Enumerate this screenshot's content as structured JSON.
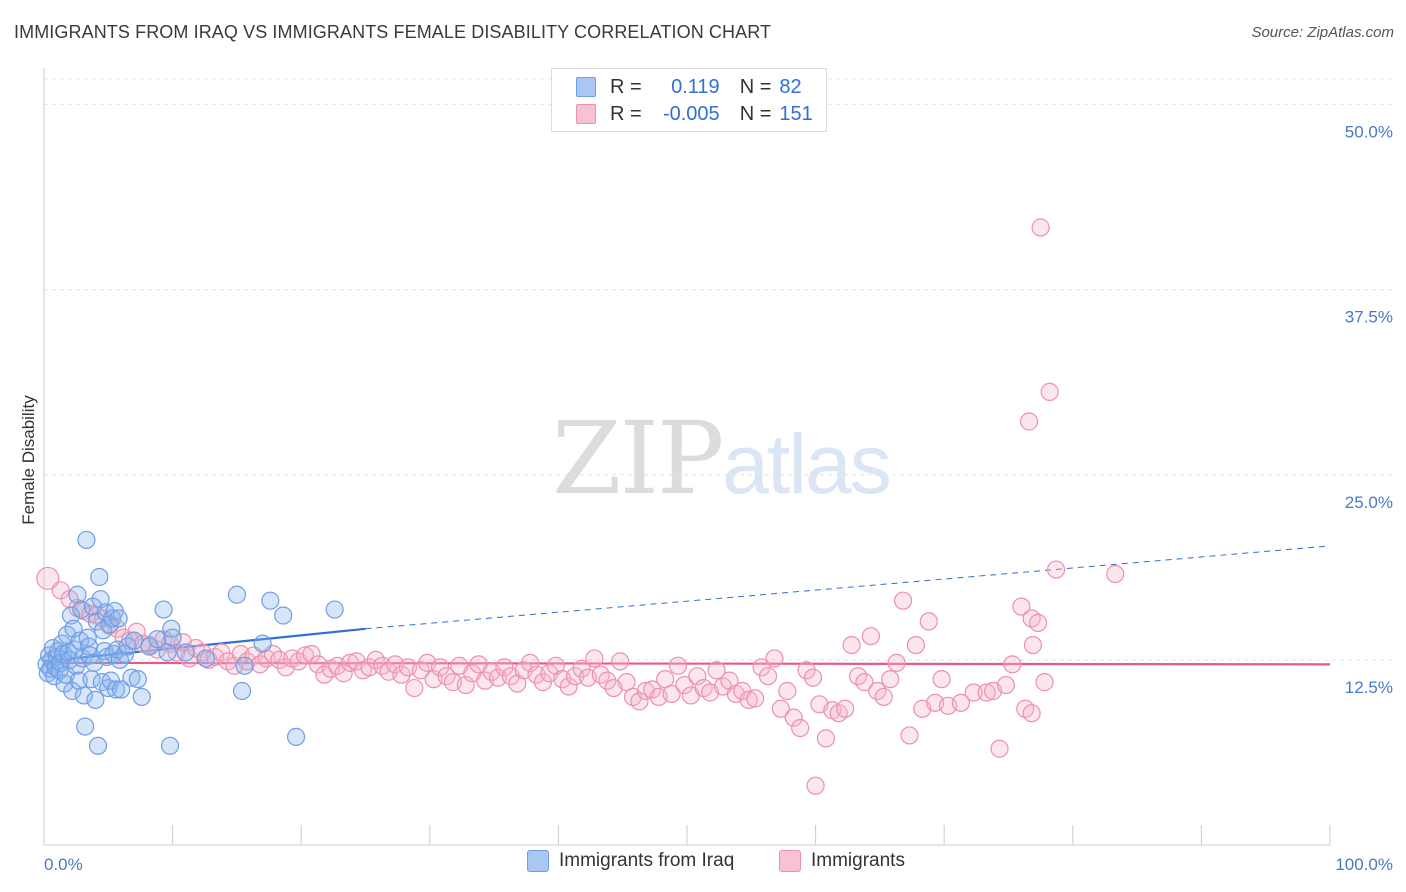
{
  "title": "IMMIGRANTS FROM IRAQ VS IMMIGRANTS FEMALE DISABILITY CORRELATION CHART",
  "source": "Source: ZipAtlas.com",
  "watermark": {
    "part1": "ZIP",
    "part2": "atlas"
  },
  "legend": {
    "rows": [
      {
        "r_label": "R =",
        "r_value": "0.119",
        "n_label": "N =",
        "n_value": "82",
        "color": "#a9c7f0",
        "border": "#6f9ee6"
      },
      {
        "r_label": "R =",
        "r_value": "-0.005",
        "n_label": "N =",
        "n_value": "151",
        "color": "#f7c3d3",
        "border": "#ee8fad"
      }
    ]
  },
  "bottom_legend": [
    {
      "label": "Immigrants from Iraq",
      "color": "#a9c7f0",
      "border": "#6f9ee6"
    },
    {
      "label": "Immigrants",
      "color": "#f7c3d3",
      "border": "#ee8fad"
    }
  ],
  "chart_data": {
    "type": "scatter",
    "ylabel": "Female Disability",
    "xlim": [
      0,
      100
    ],
    "ylim": [
      0,
      52
    ],
    "x_tick_labels": [
      "0.0%",
      "100.0%"
    ],
    "y_ticks": [
      {
        "value": 12.5,
        "label": "12.5%"
      },
      {
        "value": 25.0,
        "label": "25.0%"
      },
      {
        "value": 37.5,
        "label": "37.5%"
      },
      {
        "value": 50.0,
        "label": "50.0%"
      }
    ],
    "grid": "dashed horizontal",
    "series": [
      {
        "name": "Immigrants from Iraq",
        "color": "#6f9ee6",
        "fill": "rgba(140,180,236,0.35)",
        "trend": {
          "x0": 0,
          "y0": 12.4,
          "x1": 25,
          "y1": 14.6,
          "dashed_to_x": 100,
          "dashed_y": 20.2,
          "color": "#2f6fd6"
        },
        "points": [
          [
            0.2,
            12.2
          ],
          [
            0.3,
            11.6
          ],
          [
            0.4,
            12.8
          ],
          [
            0.5,
            11.9
          ],
          [
            0.6,
            12.5
          ],
          [
            0.7,
            13.3
          ],
          [
            0.8,
            11.4
          ],
          [
            0.9,
            12.0
          ],
          [
            1.0,
            12.7
          ],
          [
            1.1,
            13.1
          ],
          [
            1.2,
            11.8
          ],
          [
            1.3,
            12.3
          ],
          [
            1.4,
            13.6
          ],
          [
            1.5,
            12.9
          ],
          [
            1.6,
            10.9
          ],
          [
            1.7,
            11.5
          ],
          [
            1.8,
            14.2
          ],
          [
            1.9,
            13.0
          ],
          [
            2.0,
            12.5
          ],
          [
            2.1,
            15.5
          ],
          [
            2.2,
            10.4
          ],
          [
            2.3,
            14.6
          ],
          [
            2.4,
            13.2
          ],
          [
            2.5,
            12.1
          ],
          [
            2.6,
            16.9
          ],
          [
            2.7,
            11.1
          ],
          [
            2.8,
            13.8
          ],
          [
            2.9,
            15.9
          ],
          [
            3.0,
            12.6
          ],
          [
            3.1,
            10.1
          ],
          [
            3.2,
            8.0
          ],
          [
            3.3,
            20.6
          ],
          [
            3.4,
            14.0
          ],
          [
            3.5,
            13.4
          ],
          [
            3.6,
            12.8
          ],
          [
            3.7,
            11.2
          ],
          [
            3.8,
            16.1
          ],
          [
            3.9,
            12.3
          ],
          [
            4.0,
            9.8
          ],
          [
            4.1,
            15.1
          ],
          [
            4.2,
            6.7
          ],
          [
            4.3,
            18.1
          ],
          [
            4.4,
            16.6
          ],
          [
            4.5,
            11.0
          ],
          [
            4.6,
            14.5
          ],
          [
            4.7,
            13.1
          ],
          [
            4.8,
            15.7
          ],
          [
            4.9,
            12.7
          ],
          [
            5.0,
            10.6
          ],
          [
            5.1,
            14.9
          ],
          [
            5.2,
            11.1
          ],
          [
            5.3,
            15.3
          ],
          [
            5.4,
            12.9
          ],
          [
            5.5,
            15.8
          ],
          [
            5.6,
            10.5
          ],
          [
            5.7,
            13.2
          ],
          [
            5.8,
            15.3
          ],
          [
            5.9,
            12.5
          ],
          [
            6.0,
            10.5
          ],
          [
            6.3,
            12.9
          ],
          [
            6.5,
            13.4
          ],
          [
            6.8,
            11.3
          ],
          [
            7.0,
            13.8
          ],
          [
            7.3,
            11.2
          ],
          [
            7.6,
            10.0
          ],
          [
            8.2,
            13.4
          ],
          [
            8.8,
            13.9
          ],
          [
            9.3,
            15.9
          ],
          [
            9.6,
            13.0
          ],
          [
            9.8,
            6.7
          ],
          [
            9.9,
            14.6
          ],
          [
            10.0,
            14.0
          ],
          [
            11.0,
            13.0
          ],
          [
            12.6,
            12.6
          ],
          [
            15.0,
            16.9
          ],
          [
            15.4,
            10.4
          ],
          [
            15.6,
            12.1
          ],
          [
            17.0,
            13.6
          ],
          [
            17.6,
            16.5
          ],
          [
            18.6,
            15.5
          ],
          [
            19.6,
            7.3
          ],
          [
            22.6,
            15.9
          ]
        ]
      },
      {
        "name": "Immigrants",
        "color": "#ee8fad",
        "fill": "rgba(244,182,202,0.35)",
        "trend": {
          "x0": 0,
          "y0": 12.3,
          "x1": 100,
          "y1": 12.2,
          "color": "#e8598a"
        },
        "points": [
          [
            0.3,
            18.0
          ],
          [
            1.3,
            17.2
          ],
          [
            2.0,
            16.6
          ],
          [
            2.6,
            16.0
          ],
          [
            3.1,
            15.8
          ],
          [
            3.6,
            15.6
          ],
          [
            4.1,
            15.5
          ],
          [
            4.6,
            15.3
          ],
          [
            5.1,
            14.8
          ],
          [
            5.7,
            14.6
          ],
          [
            6.2,
            14.0
          ],
          [
            6.7,
            13.8
          ],
          [
            7.2,
            14.4
          ],
          [
            7.7,
            13.6
          ],
          [
            8.2,
            13.5
          ],
          [
            8.8,
            13.2
          ],
          [
            9.3,
            13.9
          ],
          [
            9.8,
            13.6
          ],
          [
            10.3,
            13.0
          ],
          [
            10.8,
            13.7
          ],
          [
            11.3,
            12.6
          ],
          [
            11.8,
            13.3
          ],
          [
            12.3,
            13.0
          ],
          [
            12.8,
            12.5
          ],
          [
            13.3,
            12.7
          ],
          [
            13.8,
            13.0
          ],
          [
            14.3,
            12.4
          ],
          [
            14.8,
            12.1
          ],
          [
            15.3,
            12.9
          ],
          [
            15.8,
            12.4
          ],
          [
            16.3,
            12.8
          ],
          [
            16.8,
            12.2
          ],
          [
            17.3,
            12.6
          ],
          [
            17.8,
            12.9
          ],
          [
            18.3,
            12.5
          ],
          [
            18.8,
            12.0
          ],
          [
            19.3,
            12.6
          ],
          [
            19.8,
            12.4
          ],
          [
            20.3,
            12.8
          ],
          [
            20.8,
            12.9
          ],
          [
            21.3,
            12.2
          ],
          [
            21.8,
            11.5
          ],
          [
            22.3,
            11.9
          ],
          [
            22.8,
            12.1
          ],
          [
            23.3,
            11.6
          ],
          [
            23.8,
            12.3
          ],
          [
            24.3,
            12.4
          ],
          [
            24.8,
            11.8
          ],
          [
            25.3,
            12.0
          ],
          [
            25.8,
            12.5
          ],
          [
            26.3,
            12.1
          ],
          [
            26.8,
            11.7
          ],
          [
            27.3,
            12.2
          ],
          [
            27.8,
            11.5
          ],
          [
            28.3,
            12.0
          ],
          [
            28.8,
            10.6
          ],
          [
            29.3,
            11.8
          ],
          [
            29.8,
            12.3
          ],
          [
            30.3,
            11.2
          ],
          [
            30.8,
            12.0
          ],
          [
            31.3,
            11.4
          ],
          [
            31.8,
            11.0
          ],
          [
            32.3,
            12.1
          ],
          [
            32.8,
            10.8
          ],
          [
            33.3,
            11.6
          ],
          [
            33.8,
            12.2
          ],
          [
            34.3,
            11.1
          ],
          [
            34.8,
            11.7
          ],
          [
            35.3,
            11.3
          ],
          [
            35.8,
            12.0
          ],
          [
            36.3,
            11.4
          ],
          [
            36.8,
            10.9
          ],
          [
            37.3,
            11.8
          ],
          [
            37.8,
            12.3
          ],
          [
            38.3,
            11.5
          ],
          [
            38.8,
            11.0
          ],
          [
            39.3,
            11.6
          ],
          [
            39.8,
            12.1
          ],
          [
            40.3,
            11.2
          ],
          [
            40.8,
            10.7
          ],
          [
            41.3,
            11.4
          ],
          [
            41.8,
            11.9
          ],
          [
            42.3,
            11.3
          ],
          [
            42.8,
            12.6
          ],
          [
            43.3,
            11.5
          ],
          [
            43.8,
            11.1
          ],
          [
            44.3,
            10.6
          ],
          [
            44.8,
            12.4
          ],
          [
            45.3,
            11.0
          ],
          [
            45.8,
            10.0
          ],
          [
            46.3,
            9.7
          ],
          [
            46.8,
            10.4
          ],
          [
            47.3,
            10.5
          ],
          [
            47.8,
            10.0
          ],
          [
            48.3,
            11.2
          ],
          [
            48.8,
            10.2
          ],
          [
            49.3,
            12.1
          ],
          [
            49.8,
            10.8
          ],
          [
            50.3,
            10.1
          ],
          [
            50.8,
            11.4
          ],
          [
            51.3,
            10.6
          ],
          [
            51.8,
            10.3
          ],
          [
            52.3,
            11.8
          ],
          [
            52.8,
            10.7
          ],
          [
            53.3,
            11.1
          ],
          [
            53.8,
            10.2
          ],
          [
            54.3,
            10.4
          ],
          [
            54.8,
            9.8
          ],
          [
            55.3,
            9.9
          ],
          [
            55.8,
            12.0
          ],
          [
            56.3,
            11.4
          ],
          [
            56.8,
            12.6
          ],
          [
            57.3,
            9.2
          ],
          [
            57.8,
            10.4
          ],
          [
            58.3,
            8.6
          ],
          [
            58.8,
            7.9
          ],
          [
            59.3,
            11.8
          ],
          [
            59.8,
            11.3
          ],
          [
            60.3,
            9.5
          ],
          [
            60.8,
            7.2
          ],
          [
            61.3,
            9.1
          ],
          [
            61.8,
            8.9
          ],
          [
            62.3,
            9.2
          ],
          [
            62.8,
            13.5
          ],
          [
            63.3,
            11.4
          ],
          [
            63.8,
            11.0
          ],
          [
            64.3,
            14.1
          ],
          [
            64.8,
            10.4
          ],
          [
            65.3,
            10.0
          ],
          [
            65.8,
            11.2
          ],
          [
            66.3,
            12.3
          ],
          [
            66.8,
            16.5
          ],
          [
            67.3,
            7.4
          ],
          [
            67.8,
            13.5
          ],
          [
            68.3,
            9.2
          ],
          [
            68.8,
            15.1
          ],
          [
            69.3,
            9.6
          ],
          [
            69.8,
            11.2
          ],
          [
            70.3,
            9.4
          ],
          [
            71.3,
            9.6
          ],
          [
            72.3,
            10.3
          ],
          [
            73.3,
            10.3
          ],
          [
            73.8,
            10.4
          ],
          [
            74.3,
            6.5
          ],
          [
            74.8,
            10.8
          ],
          [
            75.3,
            12.2
          ],
          [
            76.3,
            9.2
          ],
          [
            76.8,
            8.9
          ],
          [
            76.0,
            16.1
          ],
          [
            76.8,
            15.3
          ],
          [
            76.9,
            13.5
          ],
          [
            77.3,
            15.0
          ],
          [
            77.8,
            11.0
          ],
          [
            76.6,
            28.6
          ],
          [
            78.2,
            30.6
          ],
          [
            77.5,
            41.7
          ],
          [
            78.7,
            18.6
          ],
          [
            83.3,
            18.3
          ],
          [
            60.0,
            4.0
          ]
        ]
      }
    ]
  }
}
